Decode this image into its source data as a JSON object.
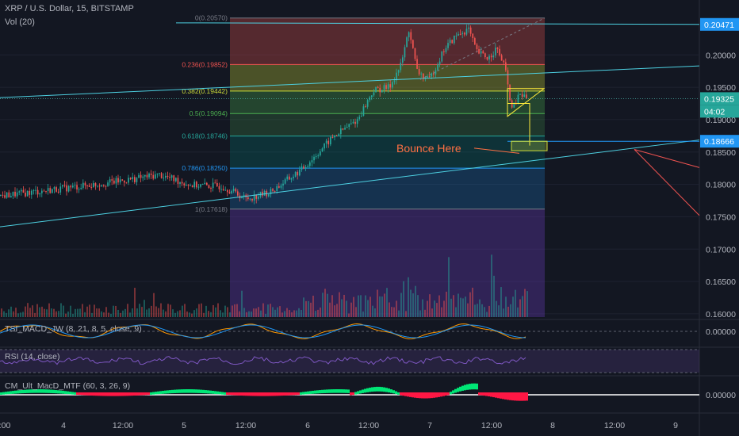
{
  "header": {
    "symbol_line": "XRP / U.S. Dollar, 15, BITSTAMP",
    "volume_label": "Vol (20)"
  },
  "colors": {
    "background": "#131722",
    "up": "#26a69a",
    "down": "#ef5350",
    "trendline": "#4dd0e1",
    "price_tag": "#2196f3",
    "annotation": "#ff7043"
  },
  "chart_data": {
    "type": "candlestick",
    "title": "XRP / U.S. Dollar, 15, BITSTAMP",
    "ylim": [
      0.1595,
      0.2075
    ],
    "y_ticks": [
      "0.20000",
      "0.19500",
      "0.19000",
      "0.18500",
      "0.18000",
      "0.17500",
      "0.17000",
      "0.16500",
      "0.16000"
    ],
    "x_ticks": [
      ":00",
      "4",
      "12:00",
      "5",
      "12:00",
      "6",
      "12:00",
      "7",
      "12:00",
      "8",
      "12:00",
      "9"
    ],
    "price_tags": [
      {
        "label": "0.20471",
        "value": 0.20471
      },
      {
        "label": "0.19325",
        "value": 0.19325
      },
      {
        "label": "04:02",
        "value": 0.19125
      },
      {
        "label": "0.18666",
        "value": 0.18666
      }
    ],
    "fib_levels": [
      {
        "label": "0(0.20570)",
        "value": 0.2057
      },
      {
        "label": "0.236(0.19852)",
        "value": 0.19852
      },
      {
        "label": "0.382(0.19442)",
        "value": 0.19442
      },
      {
        "label": "0.5(0.19094)",
        "value": 0.19094
      },
      {
        "label": "0.618(0.18746)",
        "value": 0.18746
      },
      {
        "label": "0.786(0.18250)",
        "value": 0.1825
      },
      {
        "label": "1(0.17618)",
        "value": 0.17618
      }
    ],
    "price_path": [
      {
        "x": 0,
        "y": 0.1782
      },
      {
        "x": 40,
        "y": 0.1788
      },
      {
        "x": 80,
        "y": 0.1794
      },
      {
        "x": 120,
        "y": 0.18
      },
      {
        "x": 160,
        "y": 0.1807
      },
      {
        "x": 200,
        "y": 0.1815
      },
      {
        "x": 240,
        "y": 0.1799
      },
      {
        "x": 280,
        "y": 0.1797
      },
      {
        "x": 310,
        "y": 0.1778
      },
      {
        "x": 340,
        "y": 0.1788
      },
      {
        "x": 380,
        "y": 0.1823
      },
      {
        "x": 420,
        "y": 0.1874
      },
      {
        "x": 450,
        "y": 0.19
      },
      {
        "x": 470,
        "y": 0.1945
      },
      {
        "x": 490,
        "y": 0.195
      },
      {
        "x": 505,
        "y": 0.1985
      },
      {
        "x": 515,
        "y": 0.204
      },
      {
        "x": 525,
        "y": 0.1975
      },
      {
        "x": 540,
        "y": 0.196
      },
      {
        "x": 560,
        "y": 0.201
      },
      {
        "x": 575,
        "y": 0.203
      },
      {
        "x": 590,
        "y": 0.204
      },
      {
        "x": 600,
        "y": 0.2005
      },
      {
        "x": 615,
        "y": 0.1995
      },
      {
        "x": 625,
        "y": 0.201
      },
      {
        "x": 635,
        "y": 0.1985
      },
      {
        "x": 645,
        "y": 0.1915
      },
      {
        "x": 655,
        "y": 0.194
      },
      {
        "x": 664,
        "y": 0.1932
      }
    ],
    "annotations": [
      {
        "text": "Bounce Here",
        "value": 0.1856
      }
    ],
    "indicators": [
      {
        "name": "TSI_MACD_JW (8, 21, 8, 5, close, 9)",
        "value_label": "0.00000"
      },
      {
        "name": "RSI (14, close)",
        "value_label": ""
      },
      {
        "name": "CM_Ult_MacD_MTF (60, 3, 26, 9)",
        "value_label": "0.00000"
      }
    ]
  }
}
